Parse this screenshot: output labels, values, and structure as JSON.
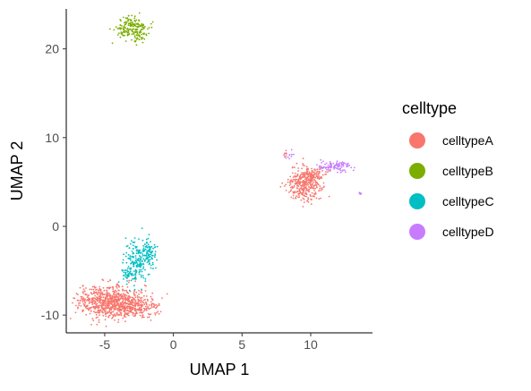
{
  "chart_data": {
    "type": "scatter",
    "xlabel": "UMAP 1",
    "ylabel": "UMAP 2",
    "xlim": [
      -7.8,
      14.5
    ],
    "ylim": [
      -12.0,
      24.5
    ],
    "xticks": [
      -5,
      0,
      5,
      10
    ],
    "yticks": [
      -10,
      0,
      10,
      20
    ],
    "grid": false,
    "legend": {
      "title": "celltype",
      "position": "right"
    },
    "series": [
      {
        "name": "celltypeA",
        "color": "#F8766D",
        "clusters": [
          {
            "cx": -4.6,
            "cy": -8.5,
            "sx": 1.2,
            "sy": 0.9,
            "n": 700
          },
          {
            "cx": -2.8,
            "cy": -9.0,
            "sx": 0.9,
            "sy": 0.6,
            "n": 220
          },
          {
            "cx": 9.6,
            "cy": 4.7,
            "sx": 0.6,
            "sy": 0.9,
            "n": 320
          },
          {
            "cx": 10.2,
            "cy": 5.8,
            "sx": 0.4,
            "sy": 0.4,
            "n": 90
          },
          {
            "cx": 8.2,
            "cy": 8.2,
            "sx": 0.1,
            "sy": 0.3,
            "n": 8
          }
        ]
      },
      {
        "name": "celltypeB",
        "color": "#7CAE00",
        "clusters": [
          {
            "cx": -3.0,
            "cy": 22.4,
            "sx": 0.55,
            "sy": 0.6,
            "n": 170
          },
          {
            "cx": -2.5,
            "cy": 21.2,
            "sx": 0.2,
            "sy": 0.4,
            "n": 25
          }
        ]
      },
      {
        "name": "celltypeC",
        "color": "#00BFC4",
        "clusters": [
          {
            "cx": -2.6,
            "cy": -3.8,
            "sx": 0.45,
            "sy": 1.3,
            "n": 170
          },
          {
            "cx": -1.8,
            "cy": -3.0,
            "sx": 0.3,
            "sy": 0.7,
            "n": 80
          },
          {
            "cx": -3.2,
            "cy": -5.2,
            "sx": 0.3,
            "sy": 0.6,
            "n": 50
          }
        ]
      },
      {
        "name": "celltypeD",
        "color": "#C77CFF",
        "clusters": [
          {
            "cx": 11.8,
            "cy": 6.8,
            "sx": 0.6,
            "sy": 0.3,
            "n": 100
          },
          {
            "cx": 8.5,
            "cy": 8.0,
            "sx": 0.15,
            "sy": 0.3,
            "n": 10
          },
          {
            "cx": 13.6,
            "cy": 3.7,
            "sx": 0.08,
            "sy": 0.1,
            "n": 5
          }
        ]
      }
    ]
  }
}
